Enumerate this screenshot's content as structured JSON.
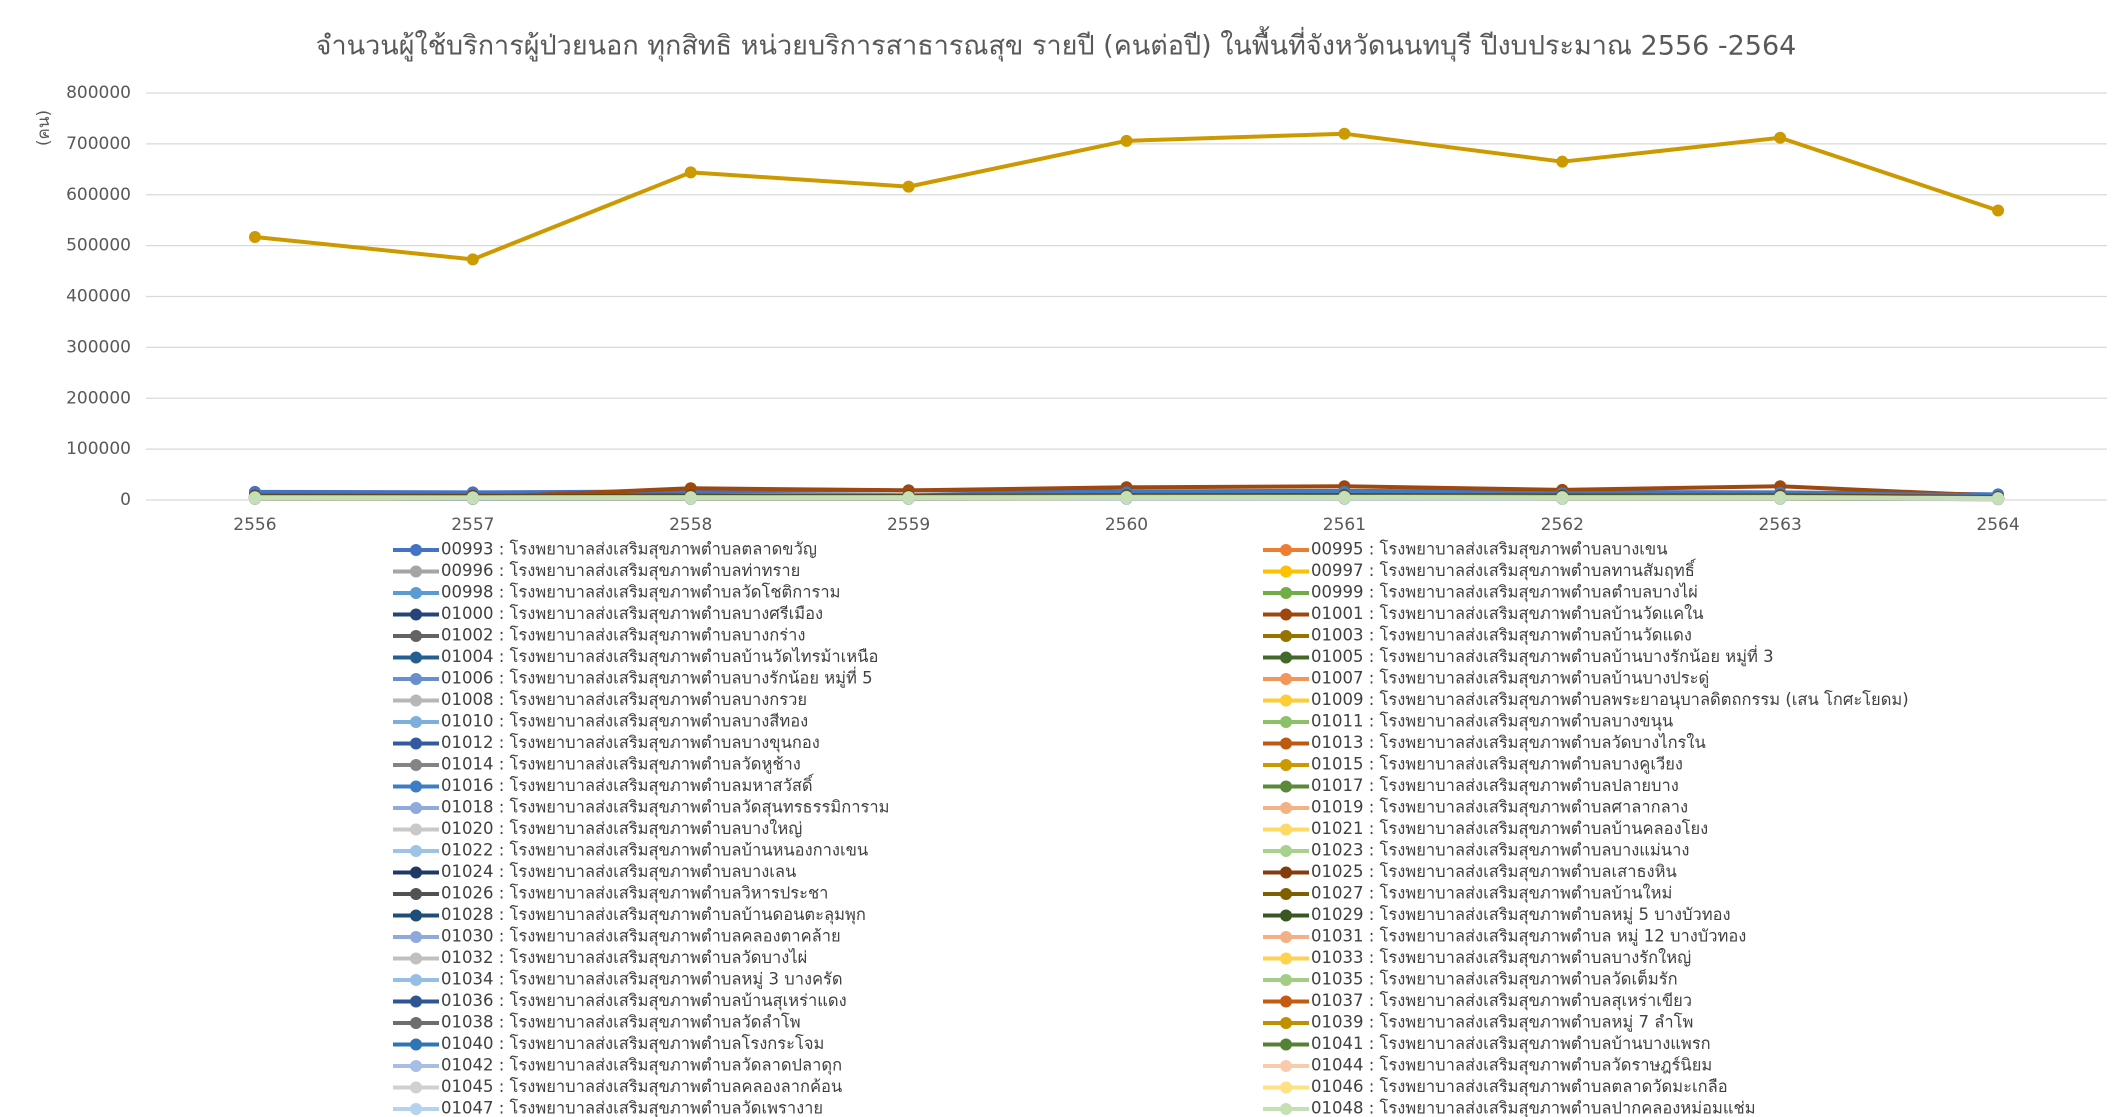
{
  "chart_data": {
    "type": "line",
    "title": "จำนวนผู้ใช้บริการผู้ป่วยนอก ทุกสิทธิ  หน่วยบริการสาธารณสุข รายปี (คนต่อปี) ในพื้นที่จังหวัดนนทบุรี  ปีงบประมาณ 2556 -2564",
    "y_label": "(คน)",
    "categories": [
      "2556",
      "2557",
      "2558",
      "2559",
      "2560",
      "2561",
      "2562",
      "2563",
      "2564"
    ],
    "ylim": [
      0,
      800000
    ],
    "yticks": [
      0,
      100000,
      200000,
      300000,
      400000,
      500000,
      600000,
      700000,
      800000
    ],
    "grid": true,
    "series": [
      {
        "name": "00993 : โรงพยาบาลส่งเสริมสุขภาพตำบลตลาดขวัญ",
        "color": "#4472C4",
        "values": [
          16000,
          15000,
          17000,
          19000,
          17000,
          18000,
          16000,
          15000,
          11000
        ]
      },
      {
        "name": "00995 : โรงพยาบาลส่งเสริมสุขภาพตำบลบางเขน",
        "color": "#ED7D31",
        "values": [
          4000,
          3800,
          4200,
          4100,
          4500,
          4700,
          4300,
          4400,
          2500
        ]
      },
      {
        "name": "00996 : โรงพยาบาลส่งเสริมสุขภาพตำบลท่าทราย",
        "color": "#A5A5A5",
        "values": [
          5000,
          4800,
          5200,
          5100,
          5600,
          5800,
          5300,
          5500,
          3500
        ]
      },
      {
        "name": "00997 : โรงพยาบาลส่งเสริมสุขภาพตำบลทานสัมฤทธิ์",
        "color": "#FFC000",
        "values": [
          3000,
          2900,
          3200,
          3100,
          3400,
          3500,
          3300,
          3300,
          2000
        ]
      },
      {
        "name": "00998 : โรงพยาบาลส่งเสริมสุขภาพตำบลวัดโชติการาม",
        "color": "#5B9BD5",
        "values": [
          6000,
          5800,
          6300,
          6200,
          6800,
          7000,
          6500,
          6600,
          4000
        ]
      },
      {
        "name": "00999 : โรงพยาบาลส่งเสริมสุขภาพตำบลตำบลบางไผ่",
        "color": "#70AD47",
        "values": [
          4500,
          4300,
          4700,
          4600,
          5000,
          5200,
          4800,
          4900,
          3000
        ]
      },
      {
        "name": "01000 : โรงพยาบาลส่งเสริมสุขภาพตำบลบางศรีเมือง",
        "color": "#264478",
        "values": [
          7000,
          6800,
          7300,
          7200,
          7800,
          8000,
          7500,
          7600,
          5000
        ]
      },
      {
        "name": "01001 : โรงพยาบาลส่งเสริมสุขภาพตำบลบ้านวัดแคใน",
        "color": "#9E480E",
        "values": [
          5000,
          5000,
          23000,
          19000,
          25000,
          27000,
          20000,
          27000,
          8000
        ]
      },
      {
        "name": "01002 : โรงพยาบาลส่งเสริมสุขภาพตำบลบางกร่าง",
        "color": "#636363",
        "values": [
          3500,
          3400,
          3700,
          3600,
          4000,
          4100,
          3800,
          3900,
          2400
        ]
      },
      {
        "name": "01003 : โรงพยาบาลส่งเสริมสุขภาพตำบลบ้านวัดแดง",
        "color": "#997300",
        "values": [
          2500,
          2400,
          2700,
          2600,
          2900,
          3000,
          2800,
          2800,
          1800
        ]
      },
      {
        "name": "01004 : โรงพยาบาลส่งเสริมสุขภาพตำบลบ้านวัดไทรม้าเหนือ",
        "color": "#255E91",
        "values": [
          8000,
          7800,
          8300,
          8200,
          9000,
          9200,
          8600,
          8800,
          6000
        ]
      },
      {
        "name": "01005 : โรงพยาบาลส่งเสริมสุขภาพตำบลบ้านบางรักน้อย หมู่ที่ 3",
        "color": "#43682B",
        "values": [
          4000,
          3900,
          4200,
          4100,
          4500,
          4600,
          4300,
          4400,
          2800
        ]
      },
      {
        "name": "01006 : โรงพยาบาลส่งเสริมสุขภาพตำบลบางรักน้อย หมู่ที่ 5",
        "color": "#698ED0",
        "values": [
          3500,
          3300,
          3600,
          3500,
          3900,
          4000,
          3700,
          3800,
          2300
        ]
      },
      {
        "name": "01007 : โรงพยาบาลส่งเสริมสุขภาพตำบลบ้านบางประดู่",
        "color": "#F1975A",
        "values": [
          3000,
          2800,
          3100,
          3000,
          3300,
          3400,
          3200,
          3200,
          2000
        ]
      },
      {
        "name": "01008 : โรงพยาบาลส่งเสริมสุขภาพตำบลบางกรวย",
        "color": "#B7B7B7",
        "values": [
          5500,
          5300,
          5700,
          5600,
          6100,
          6300,
          5800,
          6000,
          3800
        ]
      },
      {
        "name": "01009 : โรงพยาบาลส่งเสริมสุขภาพตำบลพระยาอนุบาลดิตถกรรม (เสน โกศะโยดม)",
        "color": "#FFCD33",
        "values": [
          4200,
          4000,
          4400,
          4300,
          4700,
          4800,
          4500,
          4600,
          2900
        ]
      },
      {
        "name": "01010 : โรงพยาบาลส่งเสริมสุขภาพตำบลบางสีทอง",
        "color": "#7CAFDD",
        "values": [
          6500,
          6300,
          6800,
          6700,
          7300,
          7500,
          7000,
          7100,
          4500
        ]
      },
      {
        "name": "01011 : โรงพยาบาลส่งเสริมสุขภาพตำบลบางขนุน",
        "color": "#8CC168",
        "values": [
          3800,
          3600,
          4000,
          3900,
          4300,
          4400,
          4100,
          4200,
          2600
        ]
      },
      {
        "name": "01012 : โรงพยาบาลส่งเสริมสุขภาพตำบลบางขุนกอง",
        "color": "#335AA1",
        "values": [
          4800,
          4600,
          5000,
          4900,
          5400,
          5500,
          5100,
          5200,
          3300
        ]
      },
      {
        "name": "01013 : โรงพยาบาลส่งเสริมสุขภาพตำบลวัดบางไกรใน",
        "color": "#BE5A0F",
        "values": [
          3200,
          3100,
          3400,
          3300,
          3600,
          3700,
          3500,
          3500,
          2200
        ]
      },
      {
        "name": "01014 : โรงพยาบาลส่งเสริมสุขภาพตำบลวัดหูช้าง",
        "color": "#848484",
        "values": [
          2800,
          2700,
          2900,
          2900,
          3100,
          3200,
          3000,
          3000,
          1900
        ]
      },
      {
        "name": "01015 : โรงพยาบาลส่งเสริมสุขภาพตำบลบางคูเวียง",
        "color": "#CC9A00",
        "values": [
          517000,
          473000,
          644000,
          616000,
          706000,
          720000,
          665000,
          712000,
          569000
        ]
      },
      {
        "name": "01016 : โรงพยาบาลส่งเสริมสุขภาพตำบลมหาสวัสดิ์",
        "color": "#3C7DC4",
        "values": [
          9000,
          8800,
          9400,
          9200,
          15000,
          16000,
          13000,
          14000,
          9000
        ]
      },
      {
        "name": "01017 : โรงพยาบาลส่งเสริมสุขภาพตำบลปลายบาง",
        "color": "#5A8A39",
        "values": [
          7500,
          7300,
          7800,
          7700,
          8400,
          8600,
          8000,
          8200,
          5300
        ]
      },
      {
        "name": "01018 : โรงพยาบาลส่งเสริมสุขภาพตำบลวัดสุนทรธรรมิการาม",
        "color": "#8FAADC",
        "values": [
          3600,
          3500,
          3800,
          3700,
          4100,
          4200,
          3900,
          4000,
          2500
        ]
      },
      {
        "name": "01019 : โรงพยาบาลส่งเสริมสุขภาพตำบลศาลากลาง",
        "color": "#F4B183",
        "values": [
          4400,
          4200,
          4600,
          4500,
          4900,
          5000,
          4700,
          4800,
          3000
        ]
      },
      {
        "name": "01020 : โรงพยาบาลส่งเสริมสุขภาพตำบลบางใหญ่",
        "color": "#C9C9C9",
        "values": [
          6200,
          6000,
          6500,
          6400,
          7000,
          7200,
          6700,
          6800,
          4300
        ]
      },
      {
        "name": "01021 : โรงพยาบาลส่งเสริมสุขภาพตำบลบ้านคลองโยง",
        "color": "#FFD966",
        "values": [
          2600,
          2500,
          2800,
          2700,
          3000,
          3100,
          2900,
          2900,
          1800
        ]
      },
      {
        "name": "01022 : โรงพยาบาลส่งเสริมสุขภาพตำบลบ้านหนองกางเขน",
        "color": "#9DC3E6",
        "values": [
          3400,
          3300,
          3600,
          3500,
          3800,
          3900,
          3700,
          3700,
          2300
        ]
      },
      {
        "name": "01023 : โรงพยาบาลส่งเสริมสุขภาพตำบลบางแม่นาง",
        "color": "#A9D18E",
        "values": [
          5200,
          5000,
          5400,
          5300,
          5800,
          6000,
          5500,
          5700,
          3600
        ]
      },
      {
        "name": "01024 : โรงพยาบาลส่งเสริมสุขภาพตำบลบางเลน",
        "color": "#203864",
        "values": [
          4600,
          4400,
          4800,
          4700,
          5200,
          5300,
          4900,
          5000,
          3200
        ]
      },
      {
        "name": "01025 : โรงพยาบาลส่งเสริมสุขภาพตำบลเสาธงหิน",
        "color": "#843C0C",
        "values": [
          8500,
          8300,
          9000,
          8800,
          9600,
          9800,
          9100,
          9300,
          6000
        ]
      },
      {
        "name": "01026 : โรงพยาบาลส่งเสริมสุขภาพตำบลวิหารประชา",
        "color": "#525252",
        "values": [
          3900,
          3700,
          4100,
          4000,
          4400,
          4500,
          4200,
          4300,
          2700
        ]
      },
      {
        "name": "01027 : โรงพยาบาลส่งเสริมสุขภาพตำบลบ้านใหม่",
        "color": "#7F6000",
        "values": [
          3100,
          3000,
          3300,
          3200,
          3500,
          3600,
          3400,
          3400,
          2100
        ]
      },
      {
        "name": "01028 : โรงพยาบาลส่งเสริมสุขภาพตำบลบ้านดอนตะลุมพุก",
        "color": "#1F4E79",
        "values": [
          2900,
          2800,
          3000,
          3000,
          3200,
          3300,
          3100,
          3100,
          2000
        ]
      },
      {
        "name": "01029 : โรงพยาบาลส่งเสริมสุขภาพตำบลหมู่ 5 บางบัวทอง",
        "color": "#385723",
        "values": [
          6800,
          6600,
          7100,
          7000,
          7600,
          7800,
          7300,
          7400,
          4700
        ]
      },
      {
        "name": "01030 : โรงพยาบาลส่งเสริมสุขภาพตำบลคลองตาคล้าย",
        "color": "#8EA9DB",
        "values": [
          4100,
          3900,
          4300,
          4200,
          4600,
          4700,
          4400,
          4500,
          2800
        ]
      },
      {
        "name": "01031 : โรงพยาบาลส่งเสริมสุขภาพตำบล หมู่ 12 บางบัวทอง",
        "color": "#F4B084",
        "values": [
          5700,
          5500,
          5900,
          5800,
          6300,
          6500,
          6000,
          6200,
          3900
        ]
      },
      {
        "name": "01032 : โรงพยาบาลส่งเสริมสุขภาพตำบลวัดบางไผ่",
        "color": "#C0C0C0",
        "values": [
          3300,
          3200,
          3500,
          3400,
          3700,
          3800,
          3600,
          3600,
          2200
        ]
      },
      {
        "name": "01033 : โรงพยาบาลส่งเสริมสุขภาพตำบลบางรักใหญ่",
        "color": "#FFD24D",
        "values": [
          4900,
          4700,
          5100,
          5000,
          5500,
          5600,
          5200,
          5300,
          3400
        ]
      },
      {
        "name": "01034 : โรงพยาบาลส่งเสริมสุขภาพตำบลหมู่ 3 บางครัด",
        "color": "#95BFE5",
        "values": [
          3700,
          3600,
          3900,
          3800,
          4200,
          4300,
          4000,
          4100,
          2600
        ]
      },
      {
        "name": "01035 : โรงพยาบาลส่งเสริมสุขภาพตำบลวัดเต็มรัก",
        "color": "#A3CD85",
        "values": [
          2700,
          2600,
          2800,
          2800,
          3000,
          3100,
          2900,
          3000,
          1900
        ]
      },
      {
        "name": "01036 : โรงพยาบาลส่งเสริมสุขภาพตำบลบ้านสุเหร่าแดง",
        "color": "#2F5597",
        "values": [
          4300,
          4100,
          4500,
          4400,
          4800,
          4900,
          4600,
          4700,
          2900
        ]
      },
      {
        "name": "01037 : โรงพยาบาลส่งเสริมสุขภาพตำบลสุเหร่าเขียว",
        "color": "#C55A11",
        "values": [
          3800,
          3700,
          4000,
          3900,
          4300,
          4400,
          4100,
          4200,
          2600
        ]
      },
      {
        "name": "01038 : โรงพยาบาลส่งเสริมสุขภาพตำบลวัดลำโพ",
        "color": "#6E6E6E",
        "values": [
          5400,
          5200,
          5600,
          5500,
          6000,
          6200,
          5700,
          5900,
          3700
        ]
      },
      {
        "name": "01039 : โรงพยาบาลส่งเสริมสุขภาพตำบลหมู่ 7 ลำโพ",
        "color": "#BF9000",
        "values": [
          3000,
          2900,
          3200,
          3100,
          3400,
          3500,
          3300,
          3300,
          2100
        ]
      },
      {
        "name": "01040 : โรงพยาบาลส่งเสริมสุขภาพตำบลโรงกระโจม",
        "color": "#2E75B6",
        "values": [
          2400,
          2300,
          2500,
          2500,
          2700,
          2800,
          2600,
          2600,
          1700
        ]
      },
      {
        "name": "01041 : โรงพยาบาลส่งเสริมสุขภาพตำบลบ้านบางแพรก",
        "color": "#548235",
        "values": [
          3600,
          3400,
          3700,
          3600,
          4000,
          4100,
          3800,
          3900,
          2400
        ]
      },
      {
        "name": "01042 : โรงพยาบาลส่งเสริมสุขภาพตำบลวัดลาดปลาดุก",
        "color": "#A9BEE4",
        "values": [
          4700,
          4500,
          4900,
          4800,
          5300,
          5400,
          5000,
          5100,
          3200
        ]
      },
      {
        "name": "01044 : โรงพยาบาลส่งเสริมสุขภาพตำบลวัดราษฎร์นิยม",
        "color": "#F8CBAD",
        "values": [
          3200,
          3100,
          3300,
          3300,
          3600,
          3700,
          3400,
          3500,
          2200
        ]
      },
      {
        "name": "01045 : โรงพยาบาลส่งเสริมสุขภาพตำบลคลองลากค้อน",
        "color": "#D0D0D0",
        "values": [
          2800,
          2700,
          3000,
          2900,
          3200,
          3300,
          3100,
          3100,
          1900
        ]
      },
      {
        "name": "01046 : โรงพยาบาลส่งเสริมสุขภาพตำบลตลาดวัดมะเกลือ",
        "color": "#FFE082",
        "values": [
          3500,
          3400,
          3700,
          3600,
          3900,
          4000,
          3800,
          3800,
          2400
        ]
      },
      {
        "name": "01047 : โรงพยาบาลส่งเสริมสุขภาพตำบลวัดเพรางาย",
        "color": "#B4D3EE",
        "values": [
          4000,
          3800,
          4200,
          4100,
          4500,
          4600,
          4300,
          4400,
          2800
        ]
      },
      {
        "name": "01048 : โรงพยาบาลส่งเสริมสุขภาพตำบลปากคลองหม่อมแช่ม",
        "color": "#C5E0B4",
        "values": [
          5100,
          4900,
          5300,
          5200,
          5700,
          5900,
          5400,
          5600,
          3500
        ]
      }
    ]
  }
}
